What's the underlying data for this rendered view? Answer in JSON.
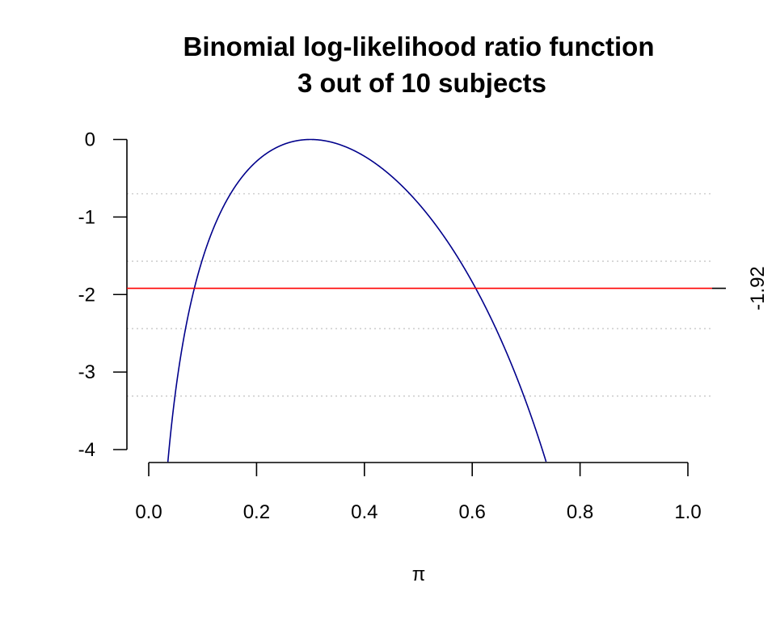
{
  "chart_data": {
    "type": "line",
    "title": "Binomial log-likelihood ratio function",
    "subtitle": "3 out of 10 subjects",
    "xlabel": "π",
    "ylabel": "",
    "xlim": [
      0,
      1
    ],
    "ylim": [
      -4,
      0
    ],
    "x_ticks": [
      "0.0",
      "0.2",
      "0.4",
      "0.6",
      "0.8",
      "1.0"
    ],
    "y_ticks": [
      "0",
      "-1",
      "-2",
      "-3",
      "-4"
    ],
    "grid": "dotted horizontal lines",
    "series": [
      {
        "curve": "binomial log-likelihood ratio",
        "successes": 3,
        "trials": 10,
        "color": "#00008B"
      }
    ],
    "reference_line": {
      "y": -1.92,
      "label": "-1.92",
      "color": "#FF0000"
    },
    "gridlines_y": [
      -0.7,
      -1.57,
      -2.44,
      -3.31
    ]
  }
}
